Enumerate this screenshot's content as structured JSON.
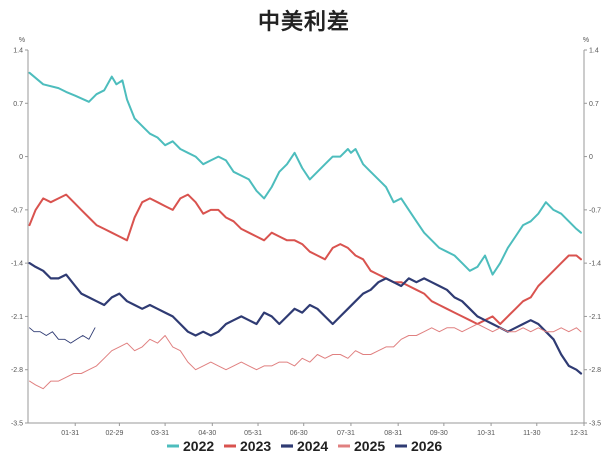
{
  "chart_data": {
    "type": "line",
    "title": "中美利差",
    "unit_left": "%",
    "unit_right": "%",
    "ylim": [
      -3.5,
      1.4
    ],
    "y_ticks": [
      1.4,
      0.7,
      0,
      -0.7,
      -1.4,
      -2.1,
      -2.8,
      -3.5
    ],
    "y_tick_labels": [
      "1.4",
      "0.7",
      "0",
      "-0.7",
      "-1.4",
      "-2.1",
      "-2.8",
      "-3.5"
    ],
    "x_day_range": [
      0,
      365
    ],
    "x_ticks": [
      31,
      60,
      90,
      121,
      151,
      181,
      212,
      243,
      273,
      304,
      334,
      365
    ],
    "x_tick_labels": [
      "01-31",
      "02-29",
      "03-31",
      "04-30",
      "05-31",
      "06-30",
      "07-31",
      "08-31",
      "09-30",
      "10-31",
      "11-30",
      "12-31"
    ],
    "grid": false,
    "legend_position": "bottom",
    "series": [
      {
        "name": "2022",
        "color": "#4dbdbd",
        "width": 2,
        "x": [
          1,
          10,
          20,
          25,
          31,
          40,
          45,
          50,
          55,
          58,
          62,
          65,
          70,
          75,
          80,
          85,
          90,
          95,
          100,
          105,
          110,
          115,
          120,
          125,
          130,
          135,
          140,
          145,
          150,
          155,
          160,
          165,
          170,
          175,
          180,
          185,
          190,
          195,
          200,
          205,
          210,
          212,
          215,
          220,
          225,
          230,
          235,
          240,
          245,
          250,
          255,
          260,
          265,
          270,
          275,
          280,
          285,
          290,
          295,
          300,
          305,
          310,
          315,
          320,
          325,
          330,
          335,
          340,
          345,
          350,
          355,
          360,
          363
        ],
        "y": [
          1.1,
          0.95,
          0.9,
          0.85,
          0.8,
          0.72,
          0.82,
          0.87,
          1.05,
          0.95,
          1.0,
          0.75,
          0.5,
          0.4,
          0.3,
          0.25,
          0.15,
          0.2,
          0.1,
          0.05,
          0.0,
          -0.1,
          -0.05,
          0.0,
          -0.05,
          -0.2,
          -0.25,
          -0.3,
          -0.45,
          -0.55,
          -0.4,
          -0.2,
          -0.1,
          0.05,
          -0.15,
          -0.3,
          -0.2,
          -0.1,
          0.0,
          0.0,
          0.1,
          0.05,
          0.1,
          -0.1,
          -0.2,
          -0.3,
          -0.4,
          -0.6,
          -0.55,
          -0.7,
          -0.85,
          -1.0,
          -1.1,
          -1.2,
          -1.25,
          -1.3,
          -1.4,
          -1.5,
          -1.45,
          -1.3,
          -1.55,
          -1.4,
          -1.2,
          -1.05,
          -0.9,
          -0.85,
          -0.75,
          -0.6,
          -0.7,
          -0.75,
          -0.85,
          -0.95,
          -1.0
        ]
      },
      {
        "name": "2023",
        "color": "#d9534f",
        "width": 2,
        "x": [
          1,
          5,
          10,
          15,
          20,
          25,
          30,
          35,
          40,
          45,
          50,
          55,
          60,
          65,
          70,
          75,
          80,
          85,
          90,
          95,
          100,
          105,
          110,
          115,
          120,
          125,
          130,
          135,
          140,
          145,
          150,
          155,
          160,
          165,
          170,
          175,
          180,
          185,
          190,
          195,
          200,
          205,
          210,
          215,
          220,
          225,
          230,
          235,
          240,
          245,
          250,
          255,
          260,
          265,
          270,
          275,
          280,
          285,
          290,
          295,
          300,
          305,
          310,
          315,
          320,
          325,
          330,
          335,
          340,
          345,
          350,
          355,
          360,
          363
        ],
        "y": [
          -0.9,
          -0.7,
          -0.55,
          -0.6,
          -0.55,
          -0.5,
          -0.6,
          -0.7,
          -0.8,
          -0.9,
          -0.95,
          -1.0,
          -1.05,
          -1.1,
          -0.8,
          -0.6,
          -0.55,
          -0.6,
          -0.65,
          -0.7,
          -0.55,
          -0.5,
          -0.6,
          -0.75,
          -0.7,
          -0.7,
          -0.8,
          -0.85,
          -0.95,
          -1.0,
          -1.05,
          -1.1,
          -1.0,
          -1.05,
          -1.1,
          -1.1,
          -1.15,
          -1.25,
          -1.3,
          -1.35,
          -1.2,
          -1.15,
          -1.2,
          -1.3,
          -1.35,
          -1.5,
          -1.55,
          -1.6,
          -1.65,
          -1.65,
          -1.7,
          -1.75,
          -1.8,
          -1.9,
          -1.95,
          -2.0,
          -2.05,
          -2.1,
          -2.15,
          -2.2,
          -2.15,
          -2.1,
          -2.2,
          -2.1,
          -2.0,
          -1.9,
          -1.85,
          -1.7,
          -1.6,
          -1.5,
          -1.4,
          -1.3,
          -1.3,
          -1.35
        ]
      },
      {
        "name": "2024",
        "color": "#2f3b73",
        "width": 2.2,
        "x": [
          1,
          5,
          10,
          15,
          20,
          25,
          31,
          35,
          40,
          45,
          50,
          55,
          60,
          65,
          70,
          75,
          80,
          85,
          90,
          95,
          100,
          105,
          110,
          115,
          120,
          125,
          130,
          135,
          140,
          145,
          150,
          155,
          160,
          165,
          170,
          175,
          180,
          185,
          190,
          195,
          200,
          205,
          210,
          215,
          220,
          225,
          230,
          235,
          240,
          245,
          250,
          255,
          260,
          265,
          270,
          275,
          280,
          285,
          290,
          295,
          300,
          305,
          310,
          315,
          320,
          325,
          330,
          335,
          340,
          345,
          350,
          355,
          360,
          363
        ],
        "y": [
          -1.4,
          -1.45,
          -1.5,
          -1.6,
          -1.6,
          -1.55,
          -1.7,
          -1.8,
          -1.85,
          -1.9,
          -1.95,
          -1.85,
          -1.8,
          -1.9,
          -1.95,
          -2.0,
          -1.95,
          -2.0,
          -2.05,
          -2.1,
          -2.2,
          -2.3,
          -2.35,
          -2.3,
          -2.35,
          -2.3,
          -2.2,
          -2.15,
          -2.1,
          -2.15,
          -2.2,
          -2.05,
          -2.1,
          -2.2,
          -2.1,
          -2.0,
          -2.05,
          -1.95,
          -2.0,
          -2.1,
          -2.2,
          -2.1,
          -2.0,
          -1.9,
          -1.8,
          -1.75,
          -1.65,
          -1.6,
          -1.65,
          -1.7,
          -1.6,
          -1.65,
          -1.6,
          -1.65,
          -1.7,
          -1.75,
          -1.85,
          -1.9,
          -2.0,
          -2.1,
          -2.15,
          -2.2,
          -2.25,
          -2.3,
          -2.25,
          -2.2,
          -2.15,
          -2.2,
          -2.3,
          -2.4,
          -2.6,
          -2.75,
          -2.8,
          -2.85
        ]
      },
      {
        "name": "2025",
        "color": "#e08080",
        "width": 1,
        "x": [
          1,
          5,
          10,
          15,
          20,
          25,
          30,
          35,
          40,
          45,
          50,
          55,
          60,
          65,
          70,
          75,
          80,
          85,
          90,
          95,
          100,
          105,
          110,
          115,
          120,
          125,
          130,
          135,
          140,
          145,
          150,
          155,
          160,
          165,
          170,
          175,
          180,
          185,
          190,
          195,
          200,
          205,
          210,
          215,
          220,
          225,
          230,
          235,
          240,
          245,
          250,
          255,
          260,
          265,
          270,
          275,
          280,
          285,
          290,
          295,
          300,
          305,
          310,
          315,
          320,
          325,
          330,
          335,
          340,
          345,
          350,
          355,
          360,
          363
        ],
        "y": [
          -2.95,
          -3.0,
          -3.05,
          -2.95,
          -2.95,
          -2.9,
          -2.85,
          -2.85,
          -2.8,
          -2.75,
          -2.65,
          -2.55,
          -2.5,
          -2.45,
          -2.55,
          -2.5,
          -2.4,
          -2.45,
          -2.35,
          -2.5,
          -2.55,
          -2.7,
          -2.8,
          -2.75,
          -2.7,
          -2.75,
          -2.8,
          -2.75,
          -2.7,
          -2.75,
          -2.8,
          -2.75,
          -2.75,
          -2.7,
          -2.7,
          -2.75,
          -2.65,
          -2.7,
          -2.6,
          -2.65,
          -2.6,
          -2.6,
          -2.65,
          -2.55,
          -2.6,
          -2.6,
          -2.55,
          -2.5,
          -2.5,
          -2.4,
          -2.35,
          -2.35,
          -2.3,
          -2.25,
          -2.3,
          -2.25,
          -2.25,
          -2.3,
          -2.25,
          -2.2,
          -2.25,
          -2.3,
          -2.25,
          -2.3,
          -2.3,
          -2.25,
          -2.3,
          -2.25,
          -2.3,
          -2.3,
          -2.25,
          -2.3,
          -2.25,
          -2.3
        ]
      },
      {
        "name": "2026",
        "color": "#2f3b73",
        "width": 0.9,
        "x": [
          1,
          4,
          8,
          12,
          16,
          20,
          24,
          28,
          32,
          36,
          40,
          44
        ],
        "y": [
          -2.25,
          -2.3,
          -2.3,
          -2.35,
          -2.3,
          -2.4,
          -2.4,
          -2.45,
          -2.4,
          -2.35,
          -2.4,
          -2.25
        ]
      }
    ]
  }
}
